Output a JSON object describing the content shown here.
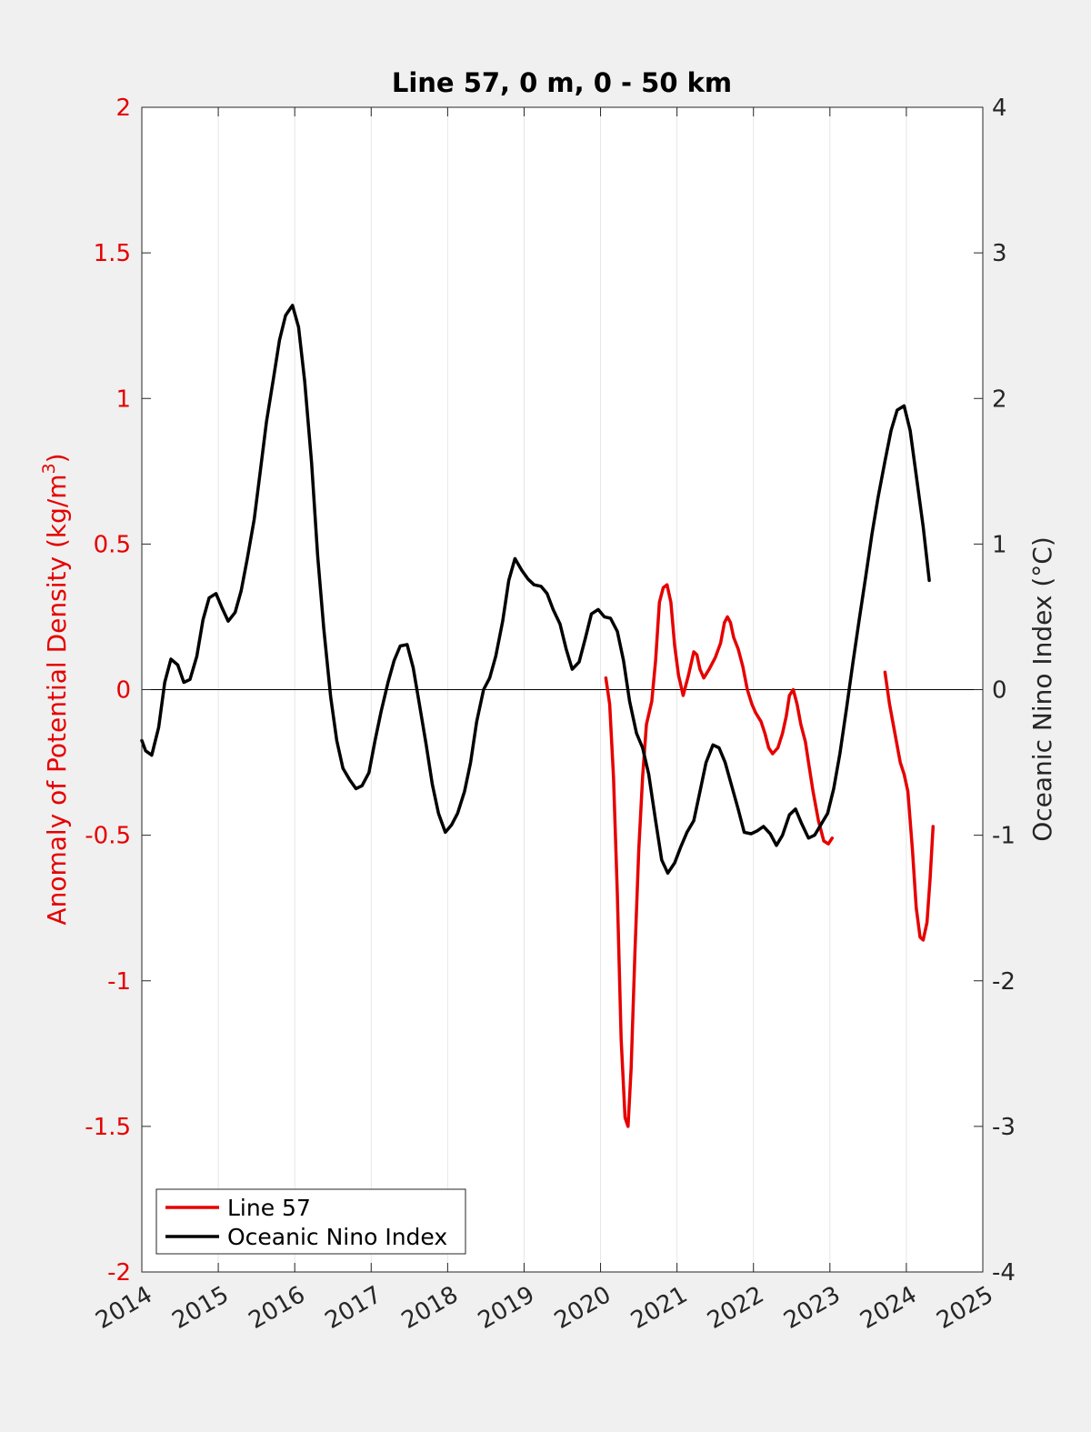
{
  "chart_data": {
    "type": "line",
    "title": "Line 57, 0 m, 0 - 50 km",
    "xlabel": "",
    "ylabel_left": "Anomaly of Potential Density (kg/m",
    "ylabel_left_sup": "3",
    "ylabel_left_close": ")",
    "ylabel_right": "Oceanic Nino Index (°C)",
    "xlim": [
      2014,
      2025
    ],
    "ylim_left": [
      -2,
      2
    ],
    "ylim_right": [
      -4,
      4
    ],
    "x_ticks": [
      "2014",
      "2015",
      "2016",
      "2017",
      "2018",
      "2019",
      "2020",
      "2021",
      "2022",
      "2023",
      "2024",
      "2025"
    ],
    "y_left_ticks": [
      "2",
      "1.5",
      "1",
      "0.5",
      "0",
      "-0.5",
      "-1",
      "-1.5",
      "-2"
    ],
    "y_right_ticks": [
      "4",
      "3",
      "2",
      "1",
      "0",
      "-1",
      "-2",
      "-3",
      "-4"
    ],
    "grid": "vertical",
    "zero_line": true,
    "legend_position": "bottom-left",
    "colors": {
      "line57": "#e60000",
      "oni": "#000000",
      "left_axis": "#e60000",
      "right_axis": "#262626"
    },
    "series": [
      {
        "name": "Line 57",
        "axis": "left",
        "segments": [
          [
            [
              2020.07,
              0.04
            ],
            [
              2020.12,
              -0.05
            ],
            [
              2020.17,
              -0.3
            ],
            [
              2020.22,
              -0.7
            ],
            [
              2020.27,
              -1.2
            ],
            [
              2020.32,
              -1.47
            ],
            [
              2020.36,
              -1.5
            ],
            [
              2020.4,
              -1.3
            ],
            [
              2020.45,
              -0.9
            ],
            [
              2020.5,
              -0.55
            ],
            [
              2020.55,
              -0.3
            ],
            [
              2020.6,
              -0.12
            ],
            [
              2020.67,
              -0.04
            ],
            [
              2020.72,
              0.1
            ],
            [
              2020.77,
              0.3
            ],
            [
              2020.82,
              0.35
            ],
            [
              2020.87,
              0.36
            ],
            [
              2020.92,
              0.3
            ],
            [
              2020.97,
              0.15
            ],
            [
              2021.02,
              0.05
            ],
            [
              2021.08,
              -0.02
            ],
            [
              2021.15,
              0.05
            ],
            [
              2021.22,
              0.13
            ],
            [
              2021.26,
              0.12
            ],
            [
              2021.3,
              0.07
            ],
            [
              2021.35,
              0.04
            ],
            [
              2021.42,
              0.07
            ],
            [
              2021.5,
              0.11
            ],
            [
              2021.57,
              0.16
            ],
            [
              2021.62,
              0.23
            ],
            [
              2021.66,
              0.25
            ],
            [
              2021.7,
              0.23
            ],
            [
              2021.74,
              0.18
            ],
            [
              2021.8,
              0.14
            ],
            [
              2021.86,
              0.08
            ],
            [
              2021.92,
              0.0
            ],
            [
              2021.98,
              -0.05
            ],
            [
              2022.03,
              -0.08
            ],
            [
              2022.1,
              -0.11
            ],
            [
              2022.15,
              -0.15
            ],
            [
              2022.2,
              -0.2
            ],
            [
              2022.25,
              -0.22
            ],
            [
              2022.32,
              -0.2
            ],
            [
              2022.38,
              -0.15
            ],
            [
              2022.43,
              -0.09
            ],
            [
              2022.47,
              -0.02
            ],
            [
              2022.52,
              0.0
            ],
            [
              2022.57,
              -0.05
            ],
            [
              2022.62,
              -0.12
            ],
            [
              2022.68,
              -0.18
            ],
            [
              2022.72,
              -0.25
            ],
            [
              2022.78,
              -0.35
            ],
            [
              2022.85,
              -0.45
            ],
            [
              2022.92,
              -0.52
            ],
            [
              2022.98,
              -0.53
            ],
            [
              2023.03,
              -0.51
            ]
          ],
          [
            [
              2023.72,
              0.06
            ],
            [
              2023.78,
              -0.05
            ],
            [
              2023.85,
              -0.15
            ],
            [
              2023.92,
              -0.25
            ],
            [
              2023.97,
              -0.29
            ],
            [
              2024.02,
              -0.35
            ],
            [
              2024.08,
              -0.55
            ],
            [
              2024.13,
              -0.75
            ],
            [
              2024.18,
              -0.85
            ],
            [
              2024.22,
              -0.86
            ],
            [
              2024.27,
              -0.8
            ],
            [
              2024.31,
              -0.65
            ],
            [
              2024.35,
              -0.47
            ]
          ]
        ]
      },
      {
        "name": "Oceanic Nino Index",
        "axis": "right",
        "segments": [
          [
            [
              2014.0,
              -0.35
            ],
            [
              2014.05,
              -0.42
            ],
            [
              2014.13,
              -0.45
            ],
            [
              2014.22,
              -0.26
            ],
            [
              2014.3,
              0.05
            ],
            [
              2014.38,
              0.21
            ],
            [
              2014.47,
              0.17
            ],
            [
              2014.55,
              0.05
            ],
            [
              2014.63,
              0.07
            ],
            [
              2014.72,
              0.23
            ],
            [
              2014.8,
              0.48
            ],
            [
              2014.88,
              0.63
            ],
            [
              2014.97,
              0.66
            ],
            [
              2015.05,
              0.56
            ],
            [
              2015.13,
              0.47
            ],
            [
              2015.22,
              0.53
            ],
            [
              2015.3,
              0.68
            ],
            [
              2015.38,
              0.9
            ],
            [
              2015.47,
              1.17
            ],
            [
              2015.55,
              1.5
            ],
            [
              2015.63,
              1.84
            ],
            [
              2015.72,
              2.13
            ],
            [
              2015.8,
              2.4
            ],
            [
              2015.88,
              2.57
            ],
            [
              2015.97,
              2.64
            ],
            [
              2016.05,
              2.49
            ],
            [
              2016.13,
              2.12
            ],
            [
              2016.22,
              1.56
            ],
            [
              2016.3,
              0.92
            ],
            [
              2016.38,
              0.42
            ],
            [
              2016.47,
              -0.05
            ],
            [
              2016.55,
              -0.35
            ],
            [
              2016.63,
              -0.54
            ],
            [
              2016.72,
              -0.62
            ],
            [
              2016.8,
              -0.68
            ],
            [
              2016.88,
              -0.66
            ],
            [
              2016.97,
              -0.57
            ],
            [
              2017.05,
              -0.35
            ],
            [
              2017.13,
              -0.15
            ],
            [
              2017.22,
              0.05
            ],
            [
              2017.3,
              0.2
            ],
            [
              2017.38,
              0.3
            ],
            [
              2017.47,
              0.31
            ],
            [
              2017.55,
              0.15
            ],
            [
              2017.63,
              -0.1
            ],
            [
              2017.72,
              -0.38
            ],
            [
              2017.8,
              -0.65
            ],
            [
              2017.88,
              -0.85
            ],
            [
              2017.97,
              -0.98
            ],
            [
              2018.05,
              -0.93
            ],
            [
              2018.13,
              -0.85
            ],
            [
              2018.22,
              -0.7
            ],
            [
              2018.3,
              -0.5
            ],
            [
              2018.38,
              -0.22
            ],
            [
              2018.47,
              0.0
            ],
            [
              2018.55,
              0.08
            ],
            [
              2018.63,
              0.23
            ],
            [
              2018.72,
              0.47
            ],
            [
              2018.8,
              0.75
            ],
            [
              2018.88,
              0.9
            ],
            [
              2018.97,
              0.82
            ],
            [
              2019.05,
              0.76
            ],
            [
              2019.13,
              0.72
            ],
            [
              2019.22,
              0.71
            ],
            [
              2019.3,
              0.66
            ],
            [
              2019.38,
              0.55
            ],
            [
              2019.47,
              0.45
            ],
            [
              2019.55,
              0.28
            ],
            [
              2019.63,
              0.14
            ],
            [
              2019.72,
              0.19
            ],
            [
              2019.8,
              0.35
            ],
            [
              2019.88,
              0.52
            ],
            [
              2019.97,
              0.55
            ],
            [
              2020.05,
              0.5
            ],
            [
              2020.13,
              0.49
            ],
            [
              2020.22,
              0.4
            ],
            [
              2020.3,
              0.2
            ],
            [
              2020.38,
              -0.08
            ],
            [
              2020.47,
              -0.3
            ],
            [
              2020.55,
              -0.4
            ],
            [
              2020.63,
              -0.58
            ],
            [
              2020.72,
              -0.9
            ],
            [
              2020.8,
              -1.17
            ],
            [
              2020.88,
              -1.26
            ],
            [
              2020.97,
              -1.19
            ],
            [
              2021.05,
              -1.08
            ],
            [
              2021.13,
              -0.98
            ],
            [
              2021.22,
              -0.9
            ],
            [
              2021.3,
              -0.7
            ],
            [
              2021.38,
              -0.5
            ],
            [
              2021.47,
              -0.38
            ],
            [
              2021.55,
              -0.4
            ],
            [
              2021.63,
              -0.5
            ],
            [
              2021.72,
              -0.67
            ],
            [
              2021.8,
              -0.82
            ],
            [
              2021.88,
              -0.98
            ],
            [
              2021.97,
              -0.99
            ],
            [
              2022.05,
              -0.97
            ],
            [
              2022.13,
              -0.94
            ],
            [
              2022.22,
              -0.99
            ],
            [
              2022.3,
              -1.07
            ],
            [
              2022.38,
              -1.0
            ],
            [
              2022.47,
              -0.86
            ],
            [
              2022.55,
              -0.82
            ],
            [
              2022.63,
              -0.92
            ],
            [
              2022.72,
              -1.02
            ],
            [
              2022.8,
              -1.0
            ],
            [
              2022.88,
              -0.93
            ],
            [
              2022.97,
              -0.85
            ],
            [
              2023.05,
              -0.68
            ],
            [
              2023.13,
              -0.44
            ],
            [
              2023.22,
              -0.12
            ],
            [
              2023.3,
              0.18
            ],
            [
              2023.38,
              0.47
            ],
            [
              2023.47,
              0.78
            ],
            [
              2023.55,
              1.07
            ],
            [
              2023.63,
              1.32
            ],
            [
              2023.72,
              1.57
            ],
            [
              2023.8,
              1.78
            ],
            [
              2023.88,
              1.92
            ],
            [
              2023.97,
              1.95
            ],
            [
              2024.05,
              1.78
            ],
            [
              2024.13,
              1.47
            ],
            [
              2024.22,
              1.12
            ],
            [
              2024.3,
              0.75
            ]
          ]
        ]
      }
    ]
  }
}
